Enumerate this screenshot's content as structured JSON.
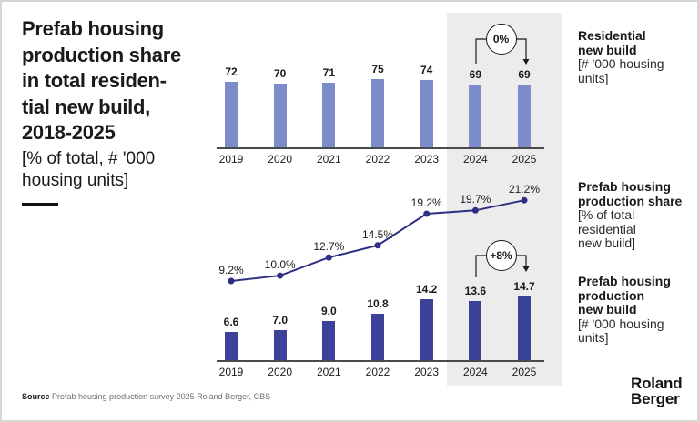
{
  "header": {
    "title": "Prefab housing\nproduction share\nin total residen-\ntial new build,\n2018-2025",
    "subtitle": "[% of total, # '000\nhousing units]"
  },
  "highlight": {
    "years": [
      "2024",
      "2025"
    ],
    "color": "#ececec"
  },
  "chart_data": [
    {
      "type": "bar",
      "name": "residential-new-build",
      "title": "Residential\nnew build",
      "unit_note": "[# '000 housing\nunits]",
      "categories": [
        "2019",
        "2020",
        "2021",
        "2022",
        "2023",
        "2024",
        "2025"
      ],
      "values": [
        72,
        70,
        71,
        75,
        74,
        69,
        69
      ],
      "labels": [
        "72",
        "70",
        "71",
        "75",
        "74",
        "69",
        "69"
      ],
      "badge": "0%",
      "bar_color": "#7c8bc9"
    },
    {
      "type": "line",
      "name": "prefab-housing-production-share",
      "title": "Prefab housing\nproduction share",
      "unit_note": "[% of total\nresidential\nnew build]",
      "categories": [
        "2019",
        "2020",
        "2021",
        "2022",
        "2023",
        "2024",
        "2025"
      ],
      "values": [
        9.2,
        10.0,
        12.7,
        14.5,
        19.2,
        19.7,
        21.2
      ],
      "labels": [
        "9.2%",
        "10.0%",
        "12.7%",
        "14.5%",
        "19.2%",
        "19.7%",
        "21.2%"
      ],
      "line_color": "#2d2f82"
    },
    {
      "type": "bar",
      "name": "prefab-housing-production-new-build",
      "title": "Prefab housing\nproduction\nnew build",
      "unit_note": "[# '000 housing\nunits]",
      "categories": [
        "2019",
        "2020",
        "2021",
        "2022",
        "2023",
        "2024",
        "2025"
      ],
      "values": [
        6.6,
        7.0,
        9.0,
        10.8,
        14.2,
        13.6,
        14.7
      ],
      "labels": [
        "6.6",
        "7.0",
        "9.0",
        "10.8",
        "14.2",
        "13.6",
        "14.7"
      ],
      "badge": "+8%",
      "bar_color": "#3c429a"
    }
  ],
  "footer": {
    "source_label": "Source",
    "source_text": " Prefab housing production survey 2025 Roland Berger, CBS",
    "logo": "Roland\nBerger"
  }
}
